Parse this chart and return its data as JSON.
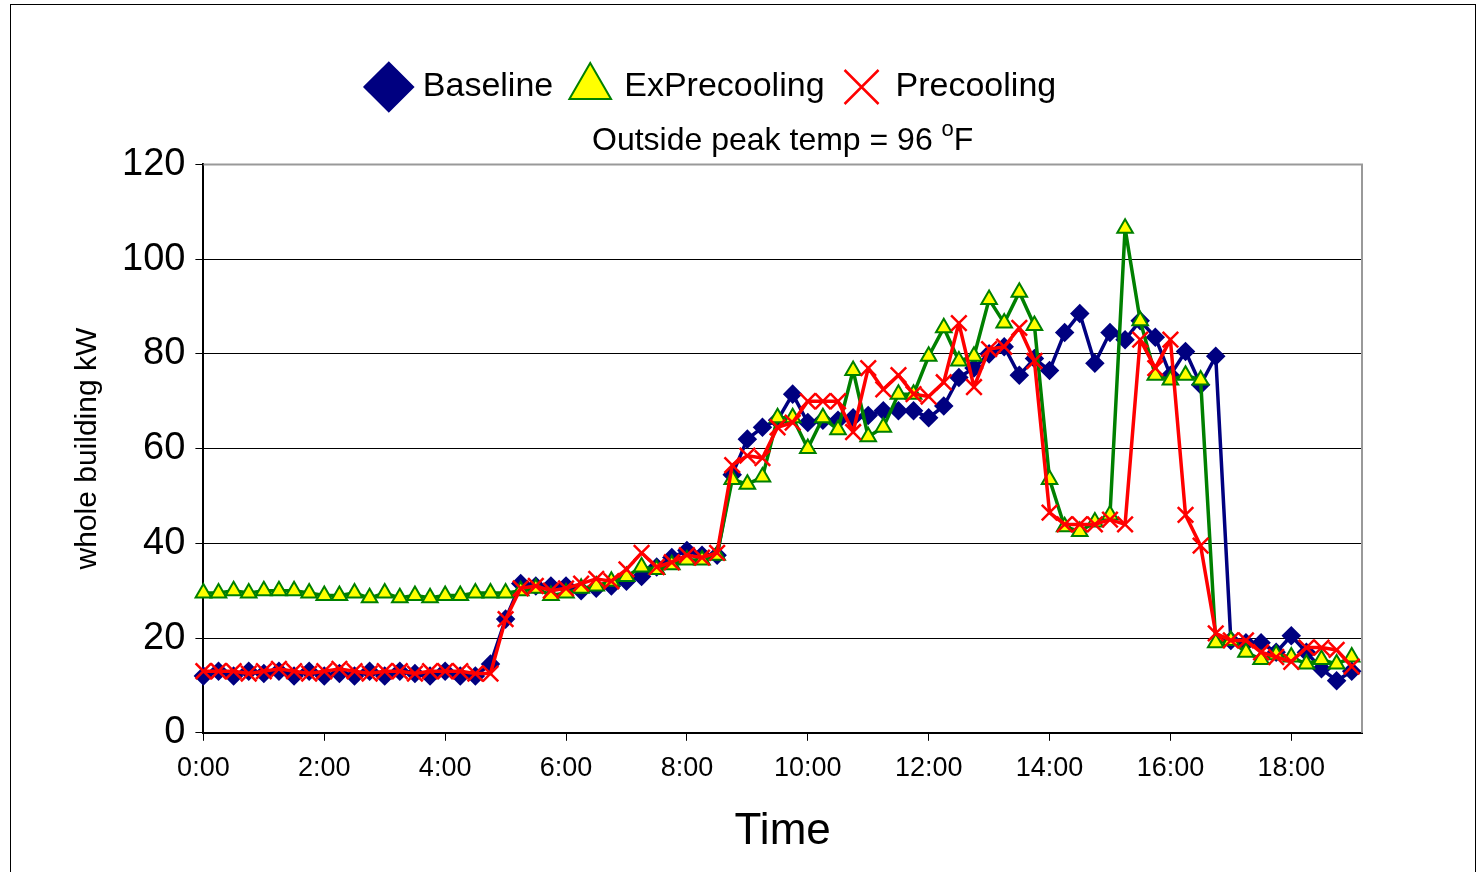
{
  "chart_data": {
    "type": "line",
    "title": "Outside peak temp = 96 $^{o}$F",
    "xlabel": "Time",
    "ylabel": "whole building kW",
    "x": [
      0,
      0.25,
      0.5,
      0.75,
      1,
      1.25,
      1.5,
      1.75,
      2,
      2.25,
      2.5,
      2.75,
      3,
      3.25,
      3.5,
      3.75,
      4,
      4.25,
      4.5,
      4.75,
      5,
      5.25,
      5.5,
      5.75,
      6,
      6.25,
      6.5,
      6.75,
      7,
      7.25,
      7.5,
      7.75,
      8,
      8.25,
      8.5,
      8.75,
      9,
      9.25,
      9.5,
      9.75,
      10,
      10.25,
      10.5,
      10.75,
      11,
      11.25,
      11.5,
      11.75,
      12,
      12.25,
      12.5,
      12.75,
      13,
      13.25,
      13.5,
      13.75,
      14,
      14.25,
      14.5,
      14.75,
      15,
      15.25,
      15.5,
      15.75,
      16,
      16.25,
      16.5,
      16.75,
      17,
      17.25,
      17.5,
      17.75,
      18,
      18.25,
      18.5,
      18.75,
      19
    ],
    "series": [
      {
        "name": "Baseline",
        "color": "#000080",
        "marker": "diamond",
        "values": [
          12,
          13,
          12,
          13,
          12.5,
          13,
          12,
          13,
          12,
          12.5,
          12,
          13,
          12,
          13,
          12.5,
          12,
          13,
          12,
          12,
          14.5,
          24,
          31.5,
          31,
          31,
          31,
          30,
          30.5,
          31,
          32,
          33,
          35,
          37,
          38.5,
          37.5,
          37.5,
          54.5,
          62,
          64.5,
          66,
          71.5,
          65.5,
          66,
          66,
          66.5,
          67,
          68,
          68,
          68,
          66.5,
          69,
          75,
          77,
          80,
          81.5,
          75.5,
          79,
          76.5,
          84.5,
          88.5,
          78,
          84.5,
          83,
          87,
          83.5,
          75.5,
          80.5,
          73.5,
          79.5,
          19.5,
          19,
          19,
          17,
          20.5,
          17,
          13.5,
          11,
          13
        ]
      },
      {
        "name": "ExPrecooling",
        "color": "#008000",
        "marker": "triangle",
        "values": [
          29.5,
          29.5,
          30,
          29.5,
          30,
          30,
          30,
          29.5,
          29,
          29,
          29.5,
          28.5,
          29.5,
          28.5,
          29,
          28.5,
          29,
          29,
          29.5,
          29.5,
          29.5,
          30,
          30.5,
          29,
          29.5,
          30.5,
          31,
          32,
          33,
          35,
          34.5,
          35.5,
          36.5,
          36.5,
          37.5,
          53.5,
          52.5,
          54,
          66.5,
          66.5,
          60,
          66.5,
          64,
          76.5,
          62.5,
          64.5,
          71.5,
          71.5,
          79.5,
          85.5,
          78.5,
          79.5,
          91.5,
          86.5,
          93,
          86,
          53.5,
          43.5,
          42.5,
          44.5,
          46,
          106.5,
          87,
          75.5,
          74.5,
          75.5,
          74.5,
          19,
          19.5,
          17,
          15.5,
          16.5,
          16,
          14.5,
          15.5,
          14.5,
          16
        ]
      },
      {
        "name": "Precooling",
        "color": "#ff0000",
        "marker": "cross",
        "values": [
          13,
          13,
          13,
          12.5,
          13,
          13.5,
          13,
          12.5,
          13,
          13.5,
          13,
          12.5,
          13,
          13,
          12.5,
          13,
          13,
          13,
          12.5,
          12.5,
          24,
          30.5,
          31,
          30,
          30.5,
          31.5,
          32.5,
          32,
          34.5,
          38,
          35,
          36,
          37.5,
          37,
          38,
          56.5,
          58.5,
          58,
          64.5,
          65.5,
          70,
          70,
          70,
          63.5,
          77,
          72.5,
          75.5,
          71.5,
          71,
          74,
          86.5,
          73,
          81,
          81.5,
          85.5,
          78.5,
          46.5,
          44,
          44,
          44,
          45,
          44,
          83,
          77,
          83,
          46,
          39.5,
          21,
          19.5,
          19.5,
          17,
          16,
          15,
          18,
          18,
          17.5,
          14
        ]
      }
    ],
    "xlim": [
      0,
      19.17
    ],
    "xticks": [
      {
        "value": 0,
        "label": "0:00"
      },
      {
        "value": 2,
        "label": "2:00"
      },
      {
        "value": 4,
        "label": "4:00"
      },
      {
        "value": 6,
        "label": "6:00"
      },
      {
        "value": 8,
        "label": "8:00"
      },
      {
        "value": 10,
        "label": "10:00"
      },
      {
        "value": 12,
        "label": "12:00"
      },
      {
        "value": 14,
        "label": "14:00"
      },
      {
        "value": 16,
        "label": "16:00"
      },
      {
        "value": 18,
        "label": "18:00"
      }
    ],
    "ylim": [
      0,
      120
    ],
    "yticks": [
      0,
      20,
      40,
      60,
      80,
      100,
      120
    ],
    "grid": "y",
    "legend": "top"
  }
}
